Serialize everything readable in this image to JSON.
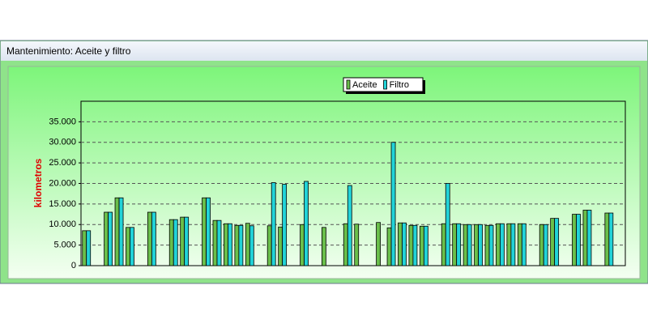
{
  "window_title": "Mantenimiento: Aceite y filtro",
  "chart_data": {
    "type": "bar",
    "y_label": "kilometros",
    "categories": [
      null,
      null,
      null,
      null,
      null,
      null,
      null,
      null,
      null,
      null,
      null,
      null,
      null,
      null,
      null,
      null,
      null,
      null,
      null,
      null,
      null,
      null,
      null,
      null,
      null,
      null,
      null,
      null,
      null,
      null,
      null,
      null,
      null,
      null,
      null,
      null,
      null,
      null,
      null,
      null,
      null,
      null,
      null,
      null,
      null,
      null,
      null,
      null,
      null,
      null
    ],
    "series": [
      {
        "name": "Aceite",
        "color": "#6abf4b",
        "values": [
          8500,
          null,
          13000,
          16500,
          9300,
          null,
          13000,
          null,
          11200,
          11800,
          null,
          16500,
          11000,
          10200,
          9800,
          10300,
          null,
          9700,
          9400,
          null,
          10000,
          null,
          9300,
          null,
          10200,
          10100,
          null,
          10500,
          9200,
          10400,
          9800,
          9600,
          null,
          10200,
          10200,
          10000,
          10000,
          9800,
          10200,
          10200,
          10200,
          null,
          10000,
          11500,
          null,
          12500,
          13500,
          null,
          12800,
          null
        ]
      },
      {
        "name": "Filtro",
        "color": "#22d3d8",
        "values": [
          8500,
          null,
          13000,
          16500,
          9300,
          null,
          13000,
          null,
          11200,
          11800,
          null,
          16500,
          11000,
          10200,
          9800,
          9700,
          null,
          20200,
          19800,
          null,
          20500,
          null,
          null,
          null,
          19500,
          null,
          null,
          null,
          30000,
          10400,
          9800,
          9600,
          null,
          20000,
          10200,
          10000,
          10000,
          9800,
          10200,
          10200,
          10200,
          null,
          10000,
          11500,
          null,
          12500,
          13500,
          null,
          12800,
          null
        ]
      }
    ],
    "ylim": [
      0,
      40000
    ],
    "yticks": [
      0,
      {
        "value": 5000,
        "label": "5.000"
      },
      {
        "value": 10000,
        "label": "10.000"
      },
      {
        "value": 15000,
        "label": "15.000"
      },
      {
        "value": 20000,
        "label": "20.000"
      },
      {
        "value": 25000,
        "label": "25.000"
      },
      {
        "value": 30000,
        "label": "30.000"
      },
      {
        "value": 35000,
        "label": "35.000"
      }
    ],
    "grid": true,
    "legend": "top"
  }
}
